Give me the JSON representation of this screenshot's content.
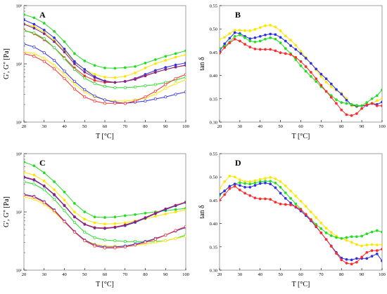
{
  "colors": {
    "red": "#ff2a2a",
    "blue": "#3030e8",
    "green": "#22dd22",
    "yellow": "#ffe600",
    "purple": "#7a2a8a",
    "axis": "#000000",
    "frame": "#888888"
  },
  "chart_data": [
    {
      "type": "line",
      "panel": "A",
      "xlabel": "T [°C]",
      "ylabel": "G', G'' [Pa]",
      "yscale": "log",
      "xlim": [
        20,
        100
      ],
      "ylim": [
        10,
        1000
      ],
      "xticks": [
        "20",
        "30",
        "40",
        "50",
        "60",
        "70",
        "80",
        "90",
        "100"
      ],
      "yticks": [
        "10³",
        "10²",
        "10¹"
      ],
      "x": [
        20,
        25,
        30,
        35,
        40,
        45,
        50,
        55,
        60,
        65,
        70,
        75,
        80,
        85,
        90,
        95,
        100
      ],
      "series": [
        {
          "color": "green",
          "marker": "filled",
          "values": [
            700,
            620,
            500,
            360,
            240,
            150,
            112,
            94,
            85,
            84,
            86,
            90,
            103,
            118,
            135,
            150,
            168
          ]
        },
        {
          "color": "yellow",
          "marker": "filled",
          "values": [
            480,
            440,
            350,
            250,
            170,
            107,
            80,
            66,
            59,
            58,
            61,
            70,
            85,
            101,
            115,
            130,
            143
          ]
        },
        {
          "color": "blue",
          "marker": "filled",
          "values": [
            570,
            480,
            380,
            280,
            180,
            110,
            80,
            60,
            51,
            48,
            50,
            56,
            66,
            77,
            87,
            96,
            104
          ]
        },
        {
          "color": "red",
          "marker": "filled",
          "values": [
            380,
            330,
            260,
            190,
            128,
            85,
            62,
            52,
            48,
            48,
            50,
            55,
            63,
            72,
            80,
            88,
            94
          ]
        },
        {
          "color": "purple",
          "marker": "filled",
          "values": [
            480,
            410,
            330,
            240,
            160,
            100,
            72,
            58,
            50,
            48,
            50,
            54,
            62,
            71,
            80,
            88,
            95
          ]
        },
        {
          "color": "green",
          "marker": "open",
          "values": [
            370,
            340,
            270,
            190,
            123,
            80,
            57,
            46,
            41,
            39,
            39,
            40,
            42,
            44,
            48,
            53,
            59
          ]
        },
        {
          "color": "yellow",
          "marker": "open",
          "values": [
            160,
            150,
            125,
            95,
            66,
            45,
            33,
            27,
            24,
            23,
            23,
            24,
            26,
            30,
            38,
            46,
            53
          ]
        },
        {
          "color": "blue",
          "marker": "open",
          "values": [
            220,
            195,
            155,
            115,
            75,
            50,
            36,
            28,
            24,
            22,
            21,
            22,
            23,
            25,
            27,
            30,
            33
          ]
        },
        {
          "color": "red",
          "marker": "open",
          "values": [
            150,
            135,
            110,
            82,
            56,
            37,
            27,
            23,
            21,
            21,
            21,
            23,
            27,
            34,
            44,
            56,
            66
          ]
        }
      ]
    },
    {
      "type": "line",
      "panel": "B",
      "xlabel": "T [°C]",
      "ylabel": "tan δ",
      "xlim": [
        20,
        100
      ],
      "ylim": [
        0.3,
        0.55
      ],
      "xticks": [
        "20",
        "30",
        "40",
        "50",
        "60",
        "70",
        "80",
        "90",
        "100"
      ],
      "yticks": [
        "0.30",
        "0.35",
        "0.40",
        "0.45",
        "0.50",
        "0.55"
      ],
      "x": [
        20,
        22.5,
        25,
        27.5,
        30,
        32.5,
        35,
        37.5,
        40,
        42.5,
        45,
        47.5,
        50,
        52.5,
        55,
        57.5,
        60,
        62.5,
        65,
        67.5,
        70,
        72.5,
        75,
        77.5,
        80,
        82.5,
        85,
        87.5,
        90,
        92.5,
        95,
        97.5,
        100
      ],
      "series": [
        {
          "color": "yellow",
          "values": [
            0.478,
            0.482,
            0.49,
            0.497,
            0.497,
            0.496,
            0.496,
            0.499,
            0.503,
            0.507,
            0.508,
            0.504,
            0.496,
            0.485,
            0.476,
            0.465,
            0.452,
            0.439,
            0.426,
            0.412,
            0.398,
            0.386,
            0.376,
            0.368,
            0.362,
            0.35,
            0.335,
            0.333,
            0.335,
            0.338,
            0.34,
            0.346,
            0.35
          ]
        },
        {
          "color": "blue",
          "values": [
            0.452,
            0.468,
            0.48,
            0.492,
            0.49,
            0.484,
            0.479,
            0.481,
            0.484,
            0.487,
            0.489,
            0.488,
            0.482,
            0.474,
            0.464,
            0.456,
            0.447,
            0.437,
            0.426,
            0.414,
            0.403,
            0.393,
            0.382,
            0.37,
            0.36,
            0.347,
            0.337,
            0.334,
            0.335,
            0.336,
            0.34,
            0.338,
            0.343
          ]
        },
        {
          "color": "green",
          "values": [
            0.458,
            0.463,
            0.472,
            0.484,
            0.487,
            0.481,
            0.474,
            0.472,
            0.474,
            0.478,
            0.481,
            0.478,
            0.47,
            0.458,
            0.447,
            0.434,
            0.421,
            0.409,
            0.398,
            0.387,
            0.376,
            0.366,
            0.357,
            0.348,
            0.342,
            0.34,
            0.338,
            0.336,
            0.335,
            0.342,
            0.35,
            0.357,
            0.369
          ]
        },
        {
          "color": "red",
          "values": [
            0.448,
            0.46,
            0.47,
            0.478,
            0.474,
            0.467,
            0.461,
            0.457,
            0.456,
            0.456,
            0.456,
            0.453,
            0.449,
            0.447,
            0.445,
            0.439,
            0.43,
            0.419,
            0.407,
            0.393,
            0.379,
            0.366,
            0.353,
            0.34,
            0.326,
            0.316,
            0.314,
            0.318,
            0.329,
            0.337,
            0.34,
            0.335,
            0.335
          ]
        }
      ]
    },
    {
      "type": "line",
      "panel": "C",
      "xlabel": "T [°C]",
      "ylabel": "G', G'' [Pa]",
      "yscale": "log",
      "xlim": [
        20,
        100
      ],
      "ylim": [
        10,
        1000
      ],
      "xticks": [
        "20",
        "30",
        "40",
        "50",
        "60",
        "70",
        "80",
        "90",
        "100"
      ],
      "yticks": [
        "10³",
        "10²",
        "10¹"
      ],
      "x": [
        20,
        25,
        30,
        35,
        40,
        45,
        50,
        55,
        60,
        65,
        70,
        75,
        80,
        85,
        90,
        95,
        100
      ],
      "series": [
        {
          "color": "green",
          "marker": "filled",
          "values": [
            720,
            620,
            470,
            330,
            220,
            140,
            100,
            82,
            80,
            82,
            86,
            90,
            95,
            100,
            105,
            110,
            115
          ]
        },
        {
          "color": "yellow",
          "marker": "filled",
          "values": [
            480,
            430,
            340,
            240,
            160,
            100,
            75,
            65,
            62,
            63,
            65,
            70,
            76,
            84,
            92,
            100,
            108
          ]
        },
        {
          "color": "red",
          "marker": "filled",
          "values": [
            400,
            360,
            280,
            200,
            130,
            83,
            62,
            54,
            53,
            55,
            60,
            68,
            80,
            96,
            113,
            130,
            148
          ]
        },
        {
          "color": "blue",
          "marker": "filled",
          "values": [
            390,
            350,
            275,
            195,
            128,
            82,
            61,
            53,
            52,
            54,
            58,
            66,
            78,
            93,
            110,
            127,
            145
          ]
        },
        {
          "color": "purple",
          "marker": "filled",
          "values": [
            395,
            355,
            278,
            198,
            129,
            82,
            61,
            53,
            52,
            54,
            59,
            67,
            79,
            94,
            112,
            128,
            146
          ]
        },
        {
          "color": "green",
          "marker": "open",
          "values": [
            330,
            300,
            240,
            165,
            105,
            66,
            45,
            36,
            33,
            32,
            31,
            31,
            31,
            31,
            32,
            35,
            40
          ]
        },
        {
          "color": "yellow",
          "marker": "open",
          "values": [
            180,
            165,
            135,
            100,
            68,
            45,
            33,
            28,
            26,
            26,
            26,
            27,
            28,
            30,
            32,
            35,
            38
          ]
        },
        {
          "color": "blue",
          "marker": "open",
          "values": [
            200,
            185,
            150,
            108,
            70,
            46,
            33,
            27,
            25,
            25,
            26,
            28,
            31,
            35,
            40,
            47,
            54
          ]
        },
        {
          "color": "red",
          "marker": "open",
          "values": [
            195,
            180,
            145,
            105,
            68,
            45,
            32,
            26,
            24,
            24,
            25,
            27,
            30,
            34,
            40,
            48,
            56
          ]
        }
      ]
    },
    {
      "type": "line",
      "panel": "D",
      "xlabel": "T [°C]",
      "ylabel": "tan δ",
      "xlim": [
        20,
        100
      ],
      "ylim": [
        0.3,
        0.55
      ],
      "xticks": [
        "20",
        "30",
        "40",
        "50",
        "60",
        "70",
        "80",
        "90",
        "100"
      ],
      "yticks": [
        "0.30",
        "0.35",
        "0.40",
        "0.45",
        "0.50",
        "0.55"
      ],
      "x": [
        20,
        22.5,
        25,
        27.5,
        30,
        32.5,
        35,
        37.5,
        40,
        42.5,
        45,
        47.5,
        50,
        52.5,
        55,
        57.5,
        60,
        62.5,
        65,
        67.5,
        70,
        72.5,
        75,
        77.5,
        80,
        82.5,
        85,
        87.5,
        90,
        92.5,
        95,
        97.5,
        100
      ],
      "series": [
        {
          "color": "yellow",
          "values": [
            0.475,
            0.49,
            0.502,
            0.5,
            0.494,
            0.49,
            0.49,
            0.492,
            0.495,
            0.497,
            0.499,
            0.496,
            0.49,
            0.481,
            0.47,
            0.459,
            0.448,
            0.437,
            0.425,
            0.413,
            0.401,
            0.39,
            0.381,
            0.373,
            0.368,
            0.364,
            0.36,
            0.355,
            0.352,
            0.354,
            0.355,
            0.354,
            0.355
          ]
        },
        {
          "color": "green",
          "values": [
            0.46,
            0.47,
            0.48,
            0.485,
            0.488,
            0.486,
            0.485,
            0.487,
            0.49,
            0.491,
            0.491,
            0.487,
            0.478,
            0.466,
            0.454,
            0.442,
            0.431,
            0.419,
            0.409,
            0.398,
            0.389,
            0.38,
            0.374,
            0.37,
            0.368,
            0.37,
            0.372,
            0.372,
            0.373,
            0.378,
            0.382,
            0.385,
            0.382
          ]
        },
        {
          "color": "blue",
          "values": [
            0.463,
            0.47,
            0.48,
            0.485,
            0.482,
            0.478,
            0.478,
            0.482,
            0.486,
            0.487,
            0.485,
            0.477,
            0.465,
            0.454,
            0.444,
            0.435,
            0.427,
            0.417,
            0.406,
            0.393,
            0.38,
            0.366,
            0.352,
            0.338,
            0.326,
            0.323,
            0.322,
            0.325,
            0.325,
            0.325,
            0.33,
            0.335,
            0.32
          ]
        },
        {
          "color": "red",
          "values": [
            0.45,
            0.462,
            0.475,
            0.48,
            0.472,
            0.465,
            0.46,
            0.455,
            0.453,
            0.453,
            0.452,
            0.446,
            0.442,
            0.441,
            0.44,
            0.436,
            0.43,
            0.42,
            0.408,
            0.394,
            0.38,
            0.366,
            0.351,
            0.336,
            0.322,
            0.315,
            0.313,
            0.317,
            0.328,
            0.338,
            0.342,
            0.342,
            0.345
          ]
        }
      ]
    }
  ]
}
